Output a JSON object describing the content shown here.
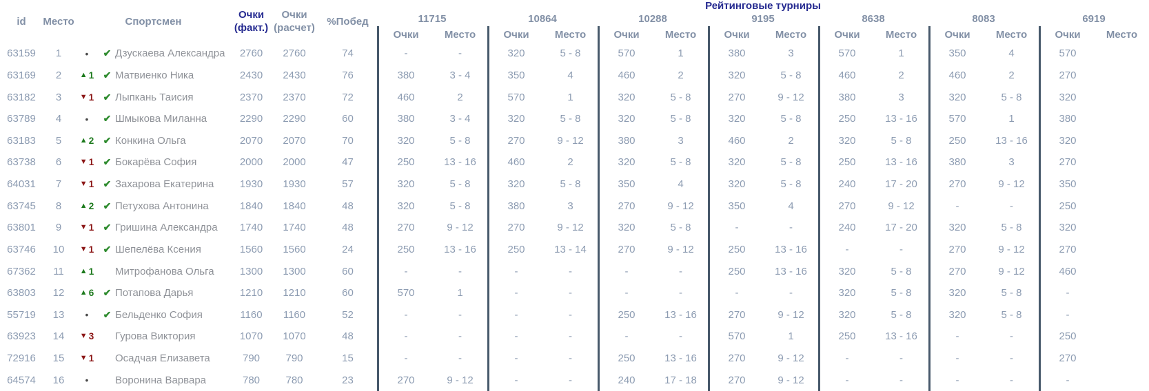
{
  "colors": {
    "header_text": "#8290a6",
    "accent_navy": "#252a90",
    "data_text": "#8d9cb2",
    "athlete_text": "#8f9298",
    "up_green": "#1d7a1d",
    "down_red": "#8c1717",
    "check_green": "#2e8b2e",
    "divider": "#47596b"
  },
  "header": {
    "id_label": "id",
    "place_label": "Место",
    "athlete_label": "Спортсмен",
    "points_fact": [
      "Очки",
      "(факт.)"
    ],
    "points_calc": [
      "Очки",
      "(расчет)"
    ],
    "win_pct_label": "%Побед",
    "tournaments_title": "Рейтинговые турниры",
    "sub_points": "Очки",
    "sub_place": "Место",
    "tournament_ids": [
      "11715",
      "10864",
      "10288",
      "9195",
      "8638",
      "8083",
      "6919"
    ]
  },
  "rows": [
    {
      "id": "63159",
      "place": "1",
      "change": "none",
      "change_value": "",
      "verified": true,
      "athlete": "Дзускаева Александра",
      "points_fact": "2760",
      "points_calc": "2760",
      "win_pct": "74",
      "tournaments": [
        {
          "points": "-",
          "place": "-"
        },
        {
          "points": "320",
          "place": "5 - 8"
        },
        {
          "points": "570",
          "place": "1"
        },
        {
          "points": "380",
          "place": "3"
        },
        {
          "points": "570",
          "place": "1"
        },
        {
          "points": "350",
          "place": "4"
        },
        {
          "points": "570"
        }
      ]
    },
    {
      "id": "63169",
      "place": "2",
      "change": "up",
      "change_value": "1",
      "verified": true,
      "athlete": "Матвиенко Ника",
      "points_fact": "2430",
      "points_calc": "2430",
      "win_pct": "76",
      "tournaments": [
        {
          "points": "380",
          "place": "3 - 4"
        },
        {
          "points": "350",
          "place": "4"
        },
        {
          "points": "460",
          "place": "2"
        },
        {
          "points": "320",
          "place": "5 - 8"
        },
        {
          "points": "460",
          "place": "2"
        },
        {
          "points": "460",
          "place": "2"
        },
        {
          "points": "270"
        }
      ]
    },
    {
      "id": "63182",
      "place": "3",
      "change": "down",
      "change_value": "1",
      "verified": true,
      "athlete": "Лыпкань Таисия",
      "points_fact": "2370",
      "points_calc": "2370",
      "win_pct": "72",
      "tournaments": [
        {
          "points": "460",
          "place": "2"
        },
        {
          "points": "570",
          "place": "1"
        },
        {
          "points": "320",
          "place": "5 - 8"
        },
        {
          "points": "270",
          "place": "9 - 12"
        },
        {
          "points": "380",
          "place": "3"
        },
        {
          "points": "320",
          "place": "5 - 8"
        },
        {
          "points": "320"
        }
      ]
    },
    {
      "id": "63789",
      "place": "4",
      "change": "none",
      "change_value": "",
      "verified": true,
      "athlete": "Шмыкова Миланна",
      "points_fact": "2290",
      "points_calc": "2290",
      "win_pct": "60",
      "tournaments": [
        {
          "points": "380",
          "place": "3 - 4"
        },
        {
          "points": "320",
          "place": "5 - 8"
        },
        {
          "points": "320",
          "place": "5 - 8"
        },
        {
          "points": "320",
          "place": "5 - 8"
        },
        {
          "points": "250",
          "place": "13 - 16"
        },
        {
          "points": "570",
          "place": "1"
        },
        {
          "points": "380"
        }
      ]
    },
    {
      "id": "63183",
      "place": "5",
      "change": "up",
      "change_value": "2",
      "verified": true,
      "athlete": "Конкина Ольга",
      "points_fact": "2070",
      "points_calc": "2070",
      "win_pct": "70",
      "tournaments": [
        {
          "points": "320",
          "place": "5 - 8"
        },
        {
          "points": "270",
          "place": "9 - 12"
        },
        {
          "points": "380",
          "place": "3"
        },
        {
          "points": "460",
          "place": "2"
        },
        {
          "points": "320",
          "place": "5 - 8"
        },
        {
          "points": "250",
          "place": "13 - 16"
        },
        {
          "points": "320"
        }
      ]
    },
    {
      "id": "63738",
      "place": "6",
      "change": "down",
      "change_value": "1",
      "verified": true,
      "athlete": "Бокарёва София",
      "points_fact": "2000",
      "points_calc": "2000",
      "win_pct": "47",
      "tournaments": [
        {
          "points": "250",
          "place": "13 - 16"
        },
        {
          "points": "460",
          "place": "2"
        },
        {
          "points": "320",
          "place": "5 - 8"
        },
        {
          "points": "320",
          "place": "5 - 8"
        },
        {
          "points": "250",
          "place": "13 - 16"
        },
        {
          "points": "380",
          "place": "3"
        },
        {
          "points": "270"
        }
      ]
    },
    {
      "id": "64031",
      "place": "7",
      "change": "down",
      "change_value": "1",
      "verified": true,
      "athlete": "Захарова Екатерина",
      "points_fact": "1930",
      "points_calc": "1930",
      "win_pct": "57",
      "tournaments": [
        {
          "points": "320",
          "place": "5 - 8"
        },
        {
          "points": "320",
          "place": "5 - 8"
        },
        {
          "points": "350",
          "place": "4"
        },
        {
          "points": "320",
          "place": "5 - 8"
        },
        {
          "points": "240",
          "place": "17 - 20"
        },
        {
          "points": "270",
          "place": "9 - 12"
        },
        {
          "points": "350"
        }
      ]
    },
    {
      "id": "63745",
      "place": "8",
      "change": "up",
      "change_value": "2",
      "verified": true,
      "athlete": "Петухова Антонина",
      "points_fact": "1840",
      "points_calc": "1840",
      "win_pct": "48",
      "tournaments": [
        {
          "points": "320",
          "place": "5 - 8"
        },
        {
          "points": "380",
          "place": "3"
        },
        {
          "points": "270",
          "place": "9 - 12"
        },
        {
          "points": "350",
          "place": "4"
        },
        {
          "points": "270",
          "place": "9 - 12"
        },
        {
          "points": "-",
          "place": "-"
        },
        {
          "points": "250"
        }
      ]
    },
    {
      "id": "63801",
      "place": "9",
      "change": "down",
      "change_value": "1",
      "verified": true,
      "athlete": "Гришина Александра",
      "points_fact": "1740",
      "points_calc": "1740",
      "win_pct": "48",
      "tournaments": [
        {
          "points": "270",
          "place": "9 - 12"
        },
        {
          "points": "270",
          "place": "9 - 12"
        },
        {
          "points": "320",
          "place": "5 - 8"
        },
        {
          "points": "-",
          "place": "-"
        },
        {
          "points": "240",
          "place": "17 - 20"
        },
        {
          "points": "320",
          "place": "5 - 8"
        },
        {
          "points": "320"
        }
      ]
    },
    {
      "id": "63746",
      "place": "10",
      "change": "down",
      "change_value": "1",
      "verified": true,
      "athlete": "Шепелёва Ксения",
      "points_fact": "1560",
      "points_calc": "1560",
      "win_pct": "24",
      "tournaments": [
        {
          "points": "250",
          "place": "13 - 16"
        },
        {
          "points": "250",
          "place": "13 - 14"
        },
        {
          "points": "270",
          "place": "9 - 12"
        },
        {
          "points": "250",
          "place": "13 - 16"
        },
        {
          "points": "-",
          "place": "-"
        },
        {
          "points": "270",
          "place": "9 - 12"
        },
        {
          "points": "270"
        }
      ]
    },
    {
      "id": "67362",
      "place": "11",
      "change": "up",
      "change_value": "1",
      "verified": false,
      "athlete": "Митрофанова Ольга",
      "points_fact": "1300",
      "points_calc": "1300",
      "win_pct": "60",
      "tournaments": [
        {
          "points": "-",
          "place": "-"
        },
        {
          "points": "-",
          "place": "-"
        },
        {
          "points": "-",
          "place": "-"
        },
        {
          "points": "250",
          "place": "13 - 16"
        },
        {
          "points": "320",
          "place": "5 - 8"
        },
        {
          "points": "270",
          "place": "9 - 12"
        },
        {
          "points": "460"
        }
      ]
    },
    {
      "id": "63803",
      "place": "12",
      "change": "up",
      "change_value": "6",
      "verified": true,
      "athlete": "Потапова Дарья",
      "points_fact": "1210",
      "points_calc": "1210",
      "win_pct": "60",
      "tournaments": [
        {
          "points": "570",
          "place": "1"
        },
        {
          "points": "-",
          "place": "-"
        },
        {
          "points": "-",
          "place": "-"
        },
        {
          "points": "-",
          "place": "-"
        },
        {
          "points": "320",
          "place": "5 - 8"
        },
        {
          "points": "320",
          "place": "5 - 8"
        },
        {
          "points": "-"
        }
      ]
    },
    {
      "id": "55719",
      "place": "13",
      "change": "none",
      "change_value": "",
      "verified": true,
      "athlete": "Бельденко София",
      "points_fact": "1160",
      "points_calc": "1160",
      "win_pct": "52",
      "tournaments": [
        {
          "points": "-",
          "place": "-"
        },
        {
          "points": "-",
          "place": "-"
        },
        {
          "points": "250",
          "place": "13 - 16"
        },
        {
          "points": "270",
          "place": "9 - 12"
        },
        {
          "points": "320",
          "place": "5 - 8"
        },
        {
          "points": "320",
          "place": "5 - 8"
        },
        {
          "points": "-"
        }
      ]
    },
    {
      "id": "63923",
      "place": "14",
      "change": "down",
      "change_value": "3",
      "verified": false,
      "athlete": "Гурова Виктория",
      "points_fact": "1070",
      "points_calc": "1070",
      "win_pct": "48",
      "tournaments": [
        {
          "points": "-",
          "place": "-"
        },
        {
          "points": "-",
          "place": "-"
        },
        {
          "points": "-",
          "place": "-"
        },
        {
          "points": "570",
          "place": "1"
        },
        {
          "points": "250",
          "place": "13 - 16"
        },
        {
          "points": "-",
          "place": "-"
        },
        {
          "points": "250"
        }
      ]
    },
    {
      "id": "72916",
      "place": "15",
      "change": "down",
      "change_value": "1",
      "verified": false,
      "athlete": "Осадчая Елизавета",
      "points_fact": "790",
      "points_calc": "790",
      "win_pct": "15",
      "tournaments": [
        {
          "points": "-",
          "place": "-"
        },
        {
          "points": "-",
          "place": "-"
        },
        {
          "points": "250",
          "place": "13 - 16"
        },
        {
          "points": "270",
          "place": "9 - 12"
        },
        {
          "points": "-",
          "place": "-"
        },
        {
          "points": "-",
          "place": "-"
        },
        {
          "points": "270"
        }
      ]
    },
    {
      "id": "64574",
      "place": "16",
      "change": "none",
      "change_value": "",
      "verified": false,
      "athlete": "Воронина Варвара",
      "points_fact": "780",
      "points_calc": "780",
      "win_pct": "23",
      "tournaments": [
        {
          "points": "270",
          "place": "9 - 12"
        },
        {
          "points": "-",
          "place": "-"
        },
        {
          "points": "240",
          "place": "17 - 18"
        },
        {
          "points": "270",
          "place": "9 - 12"
        },
        {
          "points": "-",
          "place": "-"
        },
        {
          "points": "-",
          "place": "-"
        },
        {
          "points": "-"
        }
      ]
    }
  ]
}
